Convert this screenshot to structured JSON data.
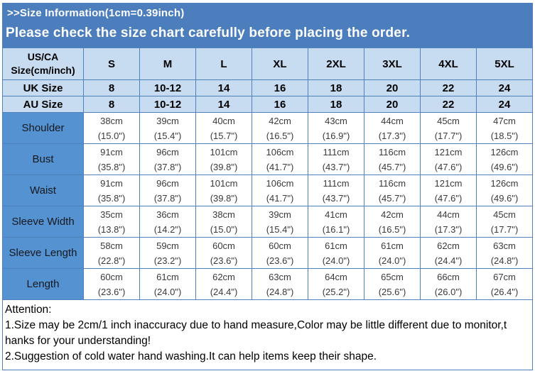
{
  "header": {
    "title": ">>Size Information(1cm=0.39inch)",
    "banner": "Please check the size chart carefully before placing the order."
  },
  "colors": {
    "banner_blue": "#4c7ebd",
    "border_blue": "#4f81bd",
    "header_light_blue": "#c7dbf1",
    "label_blue": "#5592d2"
  },
  "size_table": {
    "corner_label": "US/CA Size(cm/inch)",
    "sizes": [
      "S",
      "M",
      "L",
      "XL",
      "2XL",
      "3XL",
      "4XL",
      "5XL"
    ],
    "rows": [
      {
        "type": "size",
        "label": "UK Size",
        "values": [
          "8",
          "10-12",
          "14",
          "16",
          "18",
          "20",
          "22",
          "24"
        ]
      },
      {
        "type": "size",
        "label": "AU Size",
        "values": [
          "8",
          "10-12",
          "14",
          "16",
          "18",
          "20",
          "22",
          "24"
        ]
      },
      {
        "type": "measure",
        "label": "Shoulder",
        "values": [
          "38cm\n(15.0\")",
          "39cm\n(15.4\")",
          "40cm\n(15.7\")",
          "42cm\n(16.5\")",
          "43cm\n(16.9\")",
          "44cm\n(17.3\")",
          "45cm\n(17.7\")",
          "47cm\n(18.5\")"
        ]
      },
      {
        "type": "measure",
        "label": "Bust",
        "values": [
          "91cm\n(35.8\")",
          "96cm\n(37.8\")",
          "101cm\n(39.8\")",
          "106cm\n(41.7\")",
          "111cm\n(43.7\")",
          "116cm\n(45.7\")",
          "121cm\n(47.6\")",
          "126cm\n(49.6\")"
        ]
      },
      {
        "type": "measure",
        "label": "Waist",
        "values": [
          "91cm\n(35.8\")",
          "96cm\n(37.8\")",
          "101cm\n(39.8\")",
          "106cm\n(41.7\")",
          "111cm\n(43.7\")",
          "116cm\n(45.7\")",
          "121cm\n(47.6\")",
          "126cm\n(49.6\")"
        ]
      },
      {
        "type": "measure",
        "label": "Sleeve Width",
        "values": [
          "35cm\n(13.8\")",
          "36cm\n(14.2\")",
          "38cm\n(15.0\")",
          "39cm\n(15.4\")",
          "41cm\n(16.1\")",
          "42cm\n(16.5\")",
          "44cm\n(17.3\")",
          "45cm\n(17.7\")"
        ]
      },
      {
        "type": "measure",
        "label": "Sleeve Length",
        "values": [
          "58cm\n(22.8\")",
          "59cm\n(23.2\")",
          "60cm\n(23.6\")",
          "60cm\n(23.6\")",
          "61cm\n(24.0\")",
          "61cm\n(24.0\")",
          "62cm\n(24.4\")",
          "63cm\n(24.8\")"
        ]
      },
      {
        "type": "measure",
        "label": "Length",
        "values": [
          "60cm\n(23.6\")",
          "61cm\n(24.0\")",
          "62cm\n(24.4\")",
          "63cm\n(24.8\")",
          "64cm\n(25.2\")",
          "65cm\n(25.6\")",
          "66cm\n(26.0\")",
          "67cm\n(26.4\")"
        ]
      }
    ]
  },
  "attention": {
    "title": "Attention:",
    "lines": [
      "1.Size may be 2cm/1 inch inaccuracy due to hand measure,Color may be little different due to monitor,t",
      "hanks for your understanding!",
      "2.Suggestion of cold water hand washing.It can help items keep their shape."
    ]
  }
}
